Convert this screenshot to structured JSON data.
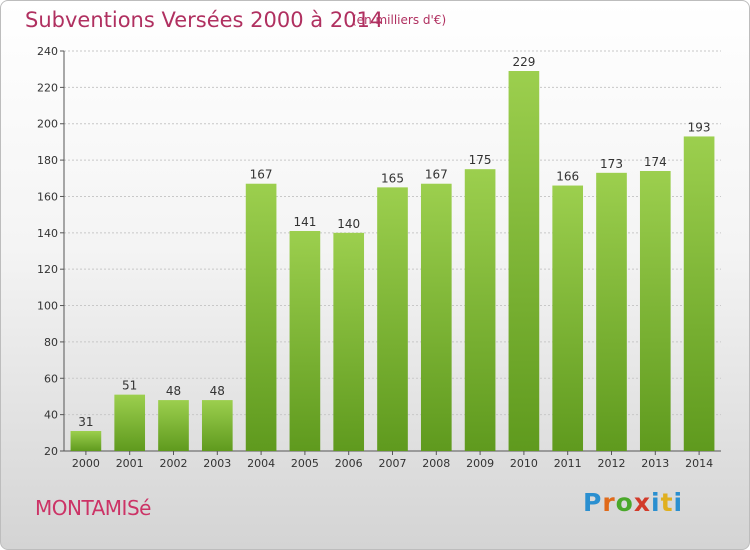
{
  "chart_data": {
    "type": "bar",
    "title": "Subventions Versées 2000 à 2014",
    "subtitle": "(en milliers d'€)",
    "categories": [
      "2000",
      "2001",
      "2002",
      "2003",
      "2004",
      "2005",
      "2006",
      "2007",
      "2008",
      "2009",
      "2010",
      "2011",
      "2012",
      "2013",
      "2014"
    ],
    "values": [
      31,
      51,
      48,
      48,
      167,
      141,
      140,
      165,
      167,
      175,
      229,
      166,
      173,
      174,
      193
    ],
    "ylim": [
      20,
      240
    ],
    "yticks": [
      20,
      40,
      60,
      80,
      100,
      120,
      140,
      160,
      180,
      200,
      220,
      240
    ],
    "grid": true,
    "bar_color_top": "#9ccf4e",
    "bar_color_bottom": "#5f9a1e"
  },
  "footer": {
    "city": "MONTAMISé",
    "logo": "Proxiti"
  },
  "colors": {
    "title": "#b03060",
    "city": "#cc3366"
  }
}
